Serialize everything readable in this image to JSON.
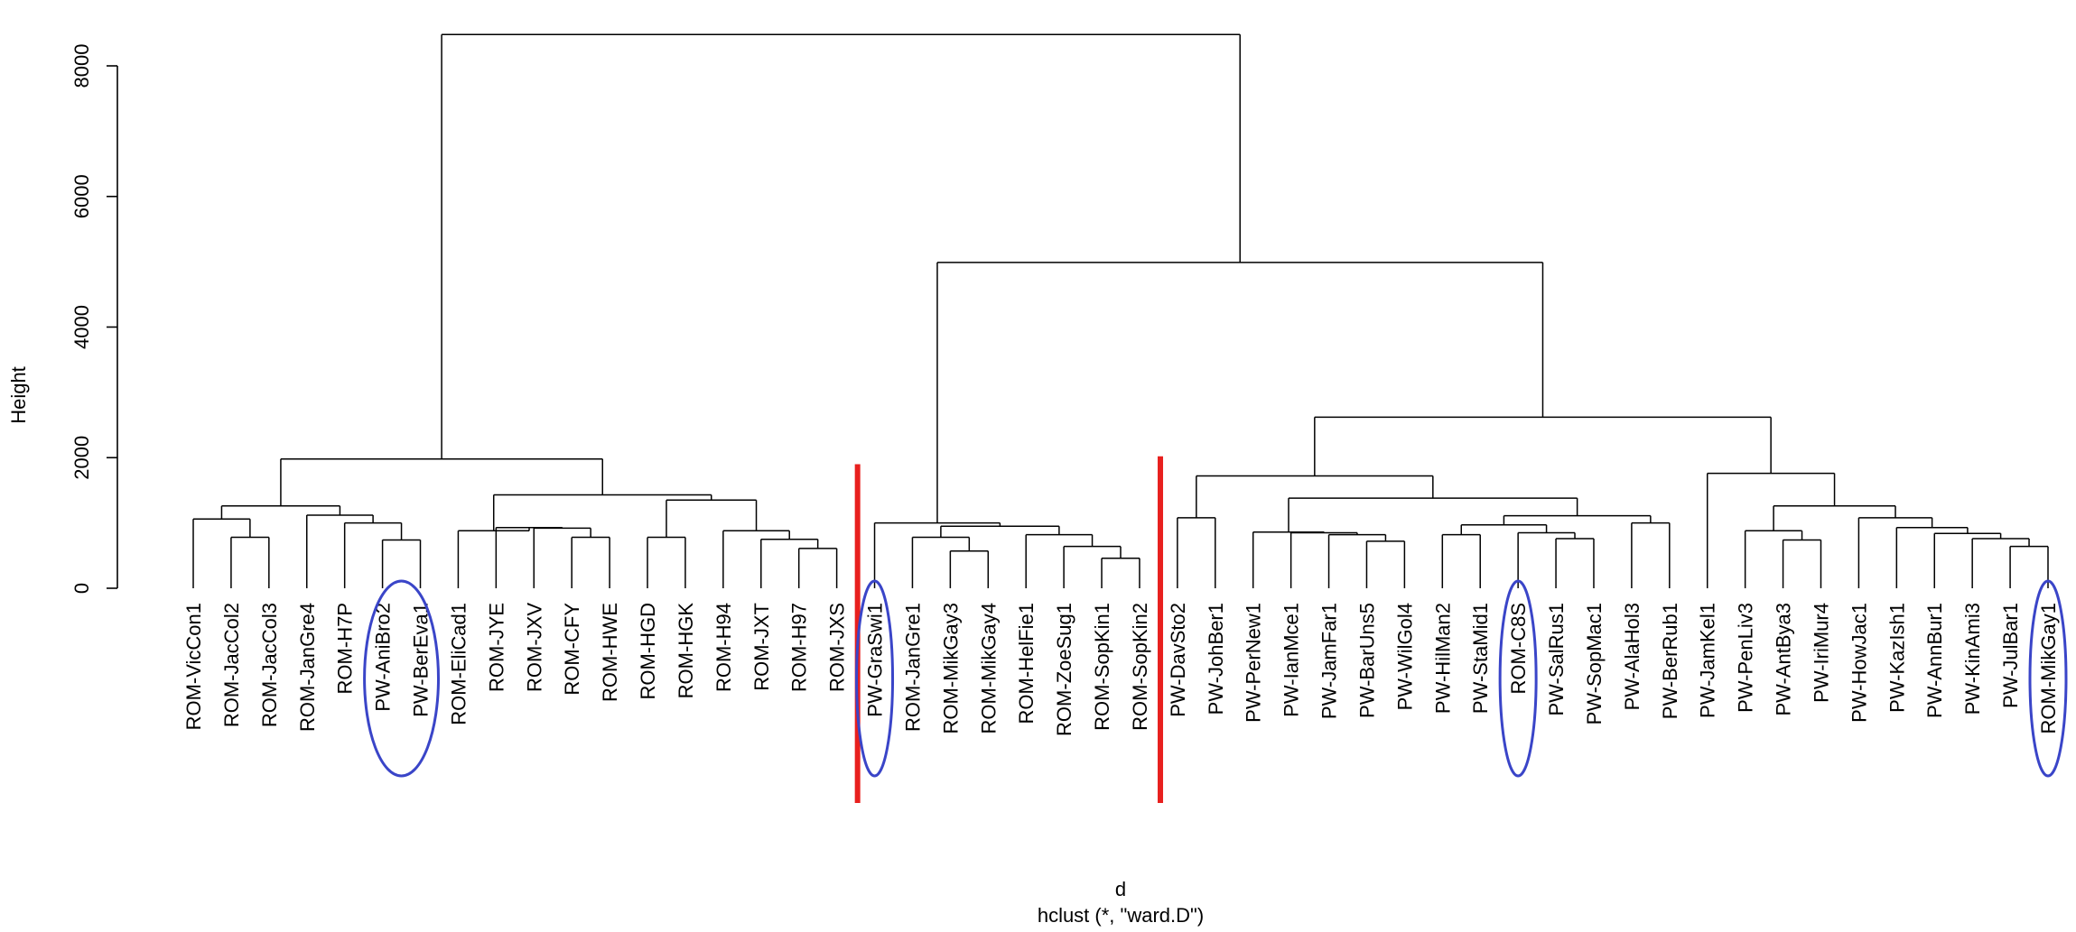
{
  "chart_data": {
    "type": "dendrogram",
    "xlabel": "d",
    "sub": "hclust (*, \"ward.D\")",
    "ylabel": "Height",
    "ylim": [
      0,
      8800
    ],
    "yticks": [
      0,
      2000,
      4000,
      6000,
      8000
    ],
    "leaves": [
      "ROM-VicCon1",
      "ROM-JacCol2",
      "ROM-JacCol3",
      "ROM-JanGre4",
      "ROM-H7P",
      "PW-AniBro2",
      "PW-BerEva1",
      "ROM-EliCad1",
      "ROM-JYE",
      "ROM-JXV",
      "ROM-CFY",
      "ROM-HWE",
      "ROM-HGD",
      "ROM-HGK",
      "ROM-H94",
      "ROM-JXT",
      "ROM-H97",
      "ROM-JXS",
      "PW-GraSwi1",
      "ROM-JanGre1",
      "ROM-MikGay3",
      "ROM-MikGay4",
      "ROM-HelFie1",
      "ROM-ZoeSug1",
      "ROM-SopKin1",
      "ROM-SopKin2",
      "PW-DavSto2",
      "PW-JohBer1",
      "PW-PerNew1",
      "PW-IanMce1",
      "PW-JamFar1",
      "PW-BarUns5",
      "PW-WilGol4",
      "PW-HilMan2",
      "PW-StaMid1",
      "ROM-C8S",
      "PW-SalRus1",
      "PW-SopMac1",
      "PW-AlaHol3",
      "PW-BerRub1",
      "PW-JamKel1",
      "PW-PenLiv3",
      "PW-AntBya3",
      "PW-IriMur4",
      "PW-HowJac1",
      "PW-KazIsh1",
      "PW-AnnBur1",
      "PW-KinAmi3",
      "PW-JulBar1",
      "ROM-MikGay1"
    ],
    "merges": [
      [
        -2,
        -3,
        780
      ],
      [
        -6,
        -7,
        740
      ],
      [
        -5,
        2,
        1000
      ],
      [
        -4,
        3,
        1120
      ],
      [
        -1,
        1,
        1060
      ],
      [
        5,
        4,
        1260
      ],
      [
        -17,
        -18,
        610
      ],
      [
        -16,
        7,
        750
      ],
      [
        -15,
        8,
        880
      ],
      [
        -13,
        -14,
        780
      ],
      [
        10,
        9,
        1350
      ],
      [
        -11,
        -12,
        780
      ],
      [
        -10,
        12,
        920
      ],
      [
        -9,
        13,
        930
      ],
      [
        -8,
        14,
        880
      ],
      [
        15,
        11,
        1430
      ],
      [
        6,
        16,
        1980
      ],
      [
        -25,
        -26,
        460
      ],
      [
        -24,
        18,
        640
      ],
      [
        -23,
        19,
        820
      ],
      [
        -21,
        -22,
        570
      ],
      [
        -20,
        21,
        780
      ],
      [
        22,
        20,
        950
      ],
      [
        -19,
        23,
        1000
      ],
      [
        -31,
        -32,
        820
      ],
      [
        -32.5,
        -33,
        660
      ],
      [
        -31.5,
        -31.6,
        0
      ],
      [
        -30,
        25,
        850
      ],
      [
        -37,
        -38,
        760
      ],
      [
        -36,
        29,
        850
      ],
      [
        -35,
        30,
        970
      ],
      [
        -34,
        31,
        820
      ],
      [
        -39,
        -40,
        1000
      ],
      [
        32,
        33,
        1110
      ],
      [
        28,
        34,
        1380
      ],
      [
        -28,
        35,
        1720
      ],
      [
        -27,
        -28.1,
        1080
      ]
    ],
    "tree": {
      "h": 8480,
      "l": {
        "h": 1980,
        "l": {
          "h": 1260,
          "l": {
            "h": 1060,
            "l": {
              "leaf": 0
            },
            "r": {
              "h": 780,
              "l": {
                "leaf": 1
              },
              "r": {
                "leaf": 2
              }
            }
          },
          "r": {
            "h": 1120,
            "l": {
              "leaf": 3
            },
            "r": {
              "h": 1000,
              "l": {
                "leaf": 4
              },
              "r": {
                "h": 740,
                "l": {
                  "leaf": 5
                },
                "r": {
                  "leaf": 6
                }
              }
            }
          }
        },
        "r": {
          "h": 1430,
          "l": {
            "h": 880,
            "l": {
              "leaf": 7
            },
            "r": {
              "h": 930,
              "l": {
                "leaf": 8
              },
              "r": {
                "h": 920,
                "l": {
                  "leaf": 9
                },
                "r": {
                  "h": 780,
                  "l": {
                    "leaf": 10
                  },
                  "r": {
                    "leaf": 11
                  }
                }
              }
            }
          },
          "r": {
            "h": 1350,
            "l": {
              "h": 780,
              "l": {
                "leaf": 12
              },
              "r": {
                "leaf": 13
              }
            },
            "r": {
              "h": 880,
              "l": {
                "leaf": 14
              },
              "r": {
                "h": 750,
                "l": {
                  "leaf": 15
                },
                "r": {
                  "h": 610,
                  "l": {
                    "leaf": 16
                  },
                  "r": {
                    "leaf": 17
                  }
                }
              }
            }
          }
        }
      },
      "r": {
        "h": 4990,
        "l": {
          "h": 1000,
          "l": {
            "leaf": 18
          },
          "r": {
            "h": 950,
            "l": {
              "h": 780,
              "l": {
                "leaf": 19
              },
              "r": {
                "h": 570,
                "l": {
                  "leaf": 20
                },
                "r": {
                  "leaf": 21
                }
              }
            },
            "r": {
              "h": 820,
              "l": {
                "leaf": 22
              },
              "r": {
                "h": 640,
                "l": {
                  "leaf": 23
                },
                "r": {
                  "h": 460,
                  "l": {
                    "leaf": 24
                  },
                  "r": {
                    "leaf": 25
                  }
                }
              }
            }
          }
        },
        "r": {
          "h": 2620,
          "l": {
            "h": 1720,
            "l": {
              "h": 1080,
              "l": {
                "leaf": 26
              },
              "r": {
                "leaf": 27
              }
            },
            "r": {
              "h": 1380,
              "l": {
                "h": 860,
                "l": {
                  "leaf": 28
                },
                "r": {
                  "h": 850,
                  "l": {
                    "leaf": 29
                  },
                  "r": {
                    "h": 820,
                    "l": {
                      "leaf": 30
                    },
                    "r": {
                      "h": 720,
                      "l": {
                        "leaf": 31
                      },
                      "r": {
                        "leaf": 32
                      }
                    }
                  }
                }
              },
              "r": {
                "h": 1110,
                "l": {
                  "h": 970,
                  "l": {
                    "h": 820,
                    "l": {
                      "leaf": 33
                    },
                    "r": {
                      "leaf": 34
                    }
                  },
                  "r": {
                    "h": 850,
                    "l": {
                      "leaf": 35
                    },
                    "r": {
                      "h": 760,
                      "l": {
                        "leaf": 36
                      },
                      "r": {
                        "leaf": 37
                      }
                    }
                  }
                },
                "r": {
                  "h": 1000,
                  "l": {
                    "leaf": 38
                  },
                  "r": {
                    "leaf": 39
                  }
                }
              }
            }
          },
          "r": {
            "h": 1760,
            "l": {
              "leaf": 40
            },
            "r": {
              "h": 1260,
              "l": {
                "h": 880,
                "l": {
                  "leaf": 41
                },
                "r": {
                  "h": 740,
                  "l": {
                    "leaf": 42
                  },
                  "r": {
                    "leaf": 43
                  }
                }
              },
              "r": {
                "h": 1080,
                "l": {
                  "leaf": 44
                },
                "r": {
                  "h": 930,
                  "l": {
                    "leaf": 45
                  },
                  "r": {
                    "h": 840,
                    "l": {
                      "leaf": 46
                    },
                    "r": {
                      "h": 760,
                      "l": {
                        "leaf": 47
                      },
                      "r": {
                        "h": 640,
                        "l": {
                          "leaf": 48
                        },
                        "r": {
                          "leaf": 49
                        }
                      }
                    }
                  }
                }
              }
            }
          }
        }
      }
    },
    "cut_lines": [
      {
        "after_leaf": 17,
        "top": 1900,
        "color": "#e8201e"
      },
      {
        "after_leaf": 25,
        "top": 2020,
        "color": "#e8201e"
      }
    ],
    "highlight_ellipses": [
      {
        "leaves": [
          5,
          6
        ],
        "color": "#3a45c8"
      },
      {
        "leaves": [
          18
        ],
        "color": "#3a45c8"
      },
      {
        "leaves": [
          35
        ],
        "color": "#3a45c8"
      },
      {
        "leaves": [
          49
        ],
        "color": "#3a45c8"
      }
    ]
  }
}
